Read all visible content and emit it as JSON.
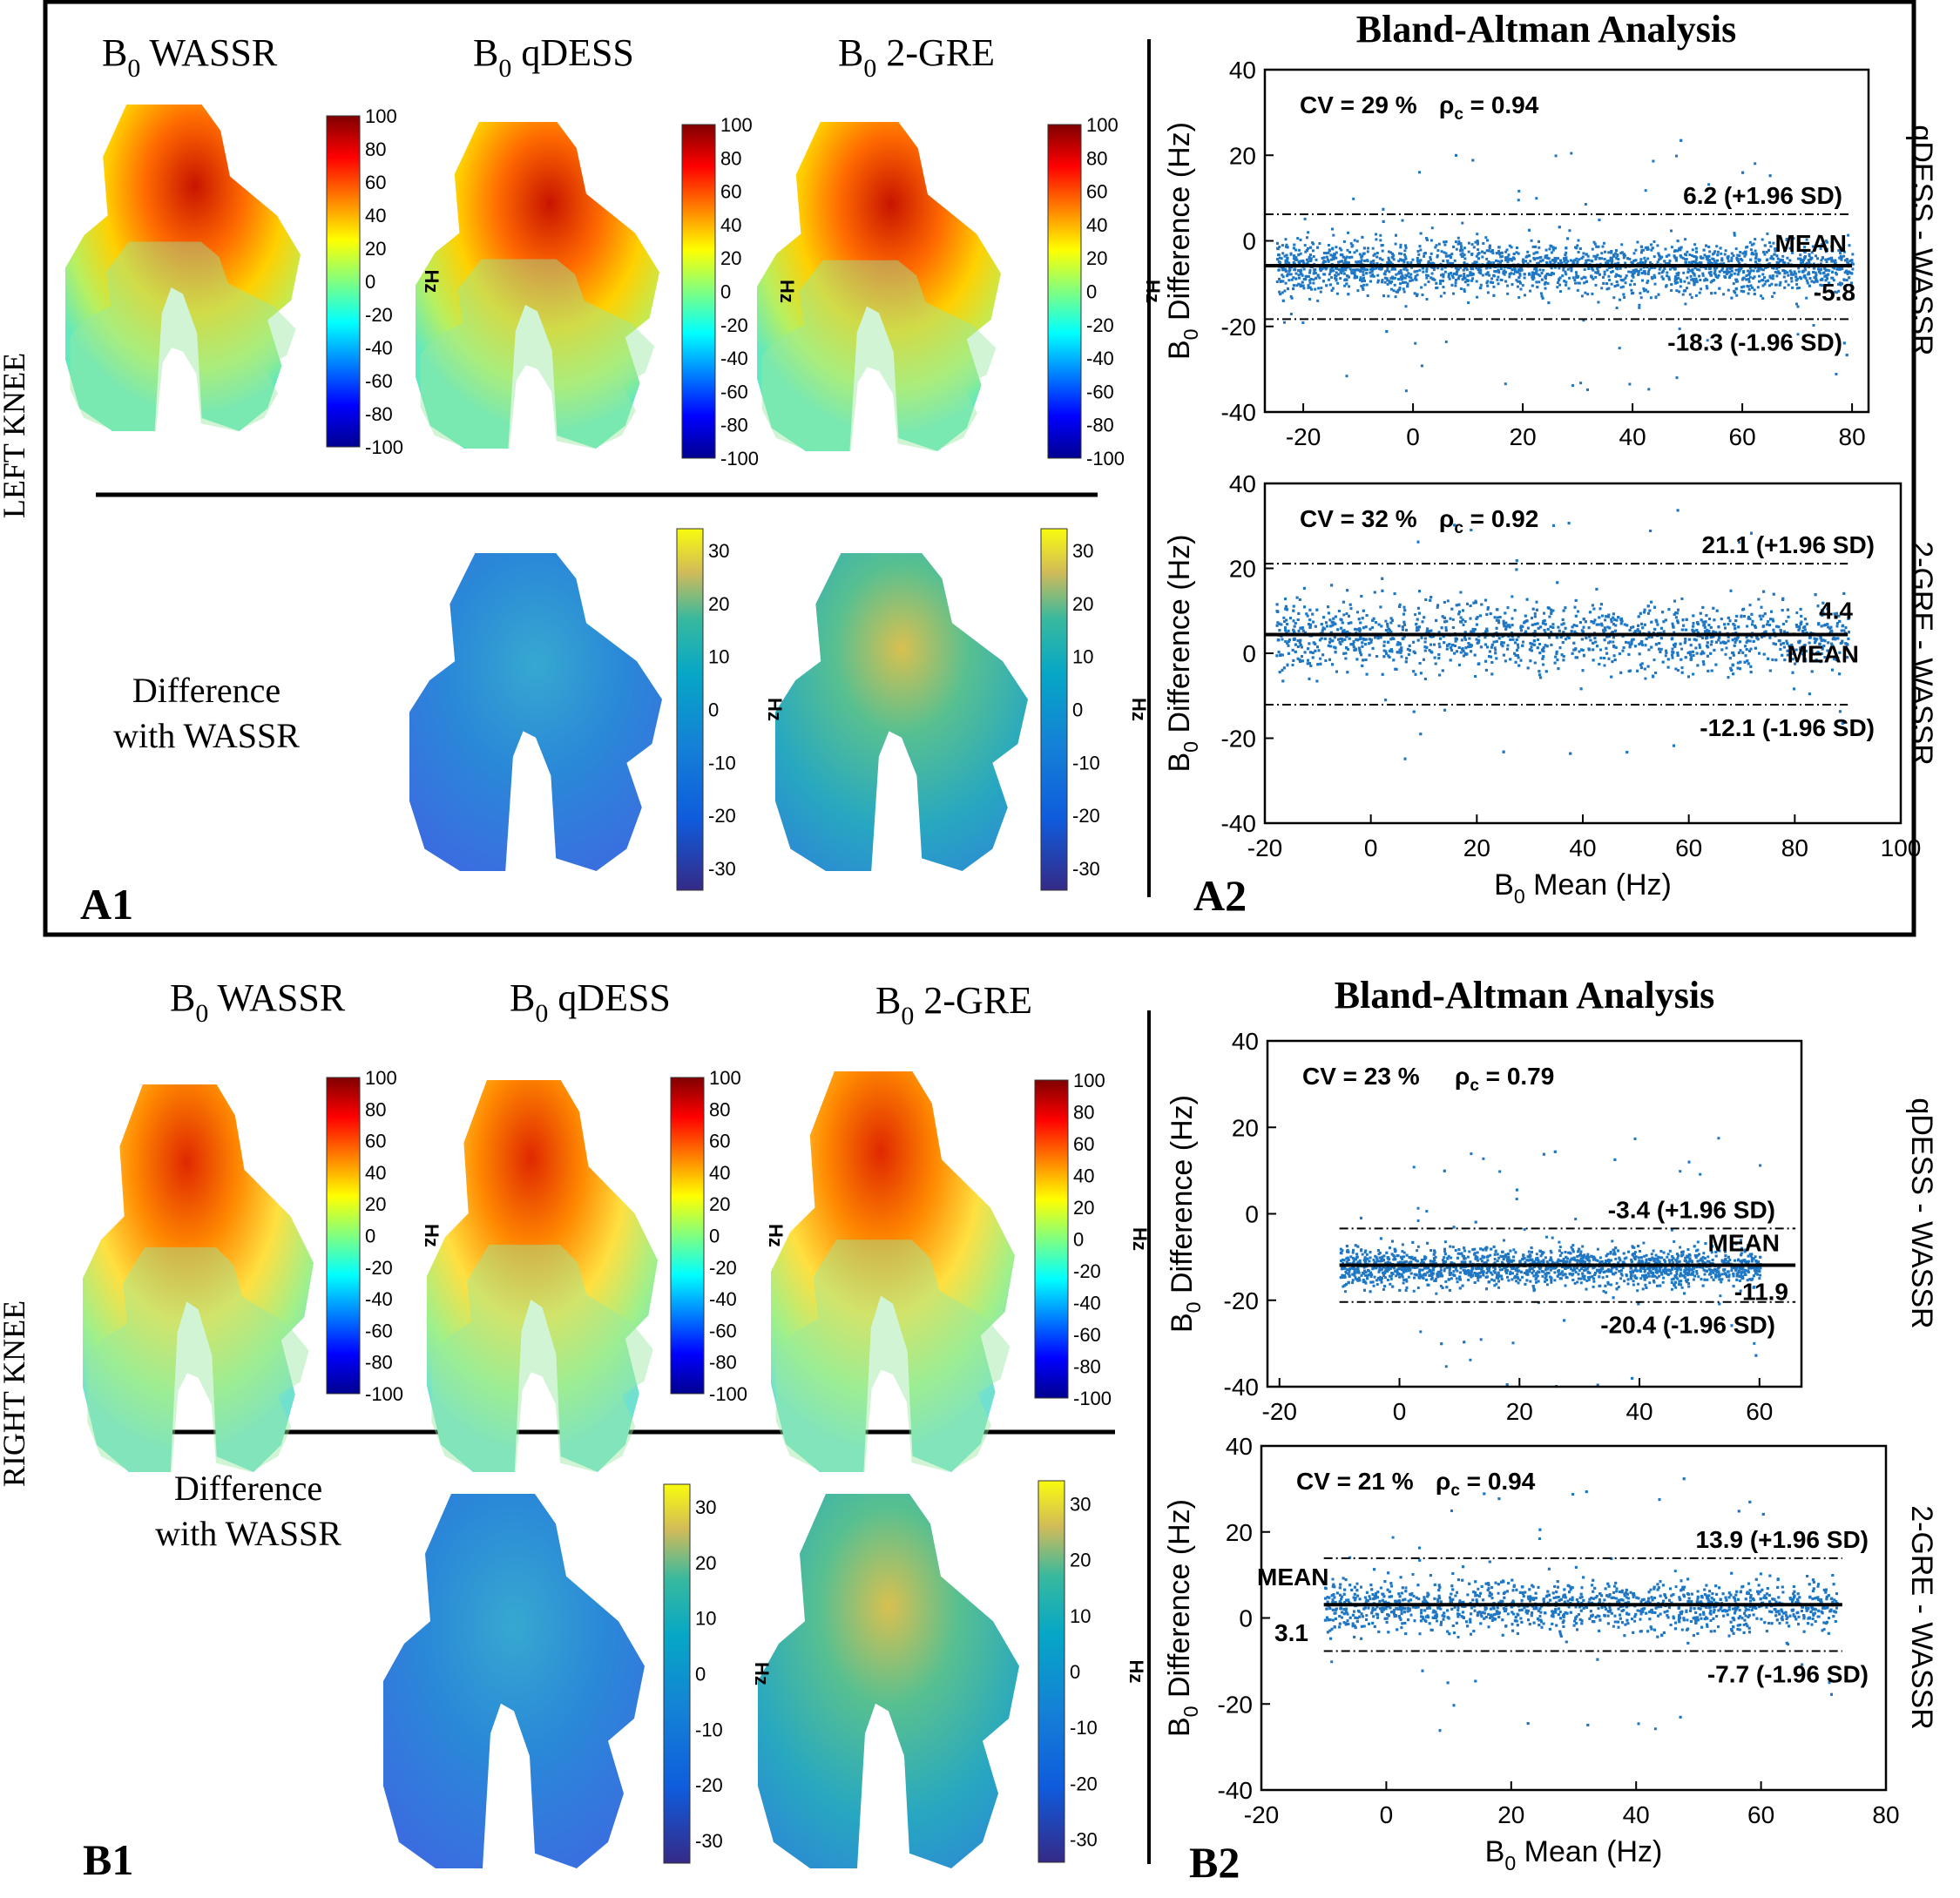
{
  "figure": {
    "panels": [
      {
        "knee_label": "LEFT KNEE",
        "map_titles": [
          {
            "pre": "B",
            "sub": "0",
            "post": " WASSR"
          },
          {
            "pre": "B",
            "sub": "0",
            "post": " qDESS"
          },
          {
            "pre": "B",
            "sub": "0",
            "post": " 2-GRE"
          }
        ],
        "diff_label": [
          "Difference",
          "with WASSR"
        ],
        "map_colorbar_ticks": [
          "100",
          "80",
          "60",
          "40",
          "20",
          "0",
          "-20",
          "-40",
          "-60",
          "-80",
          "-100"
        ],
        "diff_colorbar_ticks": [
          "30",
          "20",
          "10",
          "0",
          "-10",
          "-20",
          "-30"
        ],
        "colorbar_unit": "Hz",
        "map_corner": "A1",
        "ba_corner": "A2",
        "ba_title": "Bland-Altman Analysis"
      },
      {
        "knee_label": "RIGHT KNEE",
        "map_titles": [
          {
            "pre": "B",
            "sub": "0",
            "post": " WASSR"
          },
          {
            "pre": "B",
            "sub": "0",
            "post": " qDESS"
          },
          {
            "pre": "B",
            "sub": "0",
            "post": " 2-GRE"
          }
        ],
        "diff_label": [
          "Difference",
          "with WASSR"
        ],
        "map_colorbar_ticks": [
          "100",
          "80",
          "60",
          "40",
          "20",
          "0",
          "-20",
          "-40",
          "-60",
          "-80",
          "-100"
        ],
        "diff_colorbar_ticks": [
          "30",
          "20",
          "10",
          "0",
          "-10",
          "-20",
          "-30"
        ],
        "colorbar_unit": "Hz",
        "map_corner": "B1",
        "ba_corner": "B2",
        "ba_title": "Bland-Altman Analysis"
      }
    ],
    "y_axis_label": {
      "pre": "B",
      "sub": "0",
      "post": " Difference (Hz)"
    },
    "x_axis_label": {
      "pre": "B",
      "sub": "0",
      "post": " Mean (Hz)"
    },
    "mean_word": "MEAN"
  },
  "chart_data": [
    {
      "type": "scatter",
      "title": "Bland-Altman Analysis",
      "side_label": "qDESS - WASSR",
      "cv_text": "CV = 29 %",
      "rho_text": "ρc = 0.94",
      "xlim": [
        -27,
        83
      ],
      "ylim": [
        -40,
        40
      ],
      "xticks": [
        -20,
        0,
        20,
        40,
        60,
        80
      ],
      "yticks": [
        -40,
        -20,
        0,
        20,
        40
      ],
      "mean": -5.8,
      "upper": 6.2,
      "lower": -18.3,
      "upper_label": "6.2 (+1.96 SD)",
      "lower_label": "-18.3 (-1.96 SD)",
      "mean_value_label": "-5.8",
      "line_x": [
        -27,
        80
      ],
      "x_range": [
        -25,
        80
      ],
      "spread": 5.2,
      "npoints": 2600
    },
    {
      "type": "scatter",
      "side_label": "2-GRE - WASSR",
      "cv_text": "CV = 32 %",
      "rho_text": "ρc = 0.92",
      "xlim": [
        -20,
        100
      ],
      "ylim": [
        -40,
        40
      ],
      "xticks": [
        -20,
        0,
        20,
        40,
        60,
        80,
        100
      ],
      "yticks": [
        -40,
        -20,
        0,
        20,
        40
      ],
      "xlabel": "B0 Mean (Hz)",
      "ylabel": "B0 Difference (Hz)",
      "mean": 4.4,
      "upper": 21.1,
      "lower": -12.1,
      "upper_label": "21.1 (+1.96 SD)",
      "lower_label": "-12.1 (-1.96 SD)",
      "mean_value_label": "4.4",
      "line_x": [
        -20,
        90
      ],
      "x_range": [
        -18,
        90
      ],
      "spread": 7.0,
      "npoints": 2800
    },
    {
      "type": "scatter",
      "title": "Bland-Altman Analysis",
      "side_label": "qDESS - WASSR",
      "cv_text": "CV = 23 %",
      "rho_text": "ρc = 0.79",
      "xlim": [
        -22,
        67
      ],
      "ylim": [
        -40,
        40
      ],
      "xticks": [
        -20,
        0,
        20,
        40,
        60
      ],
      "yticks": [
        -40,
        -20,
        0,
        20,
        40
      ],
      "mean": -11.9,
      "upper": -3.4,
      "lower": -20.4,
      "upper_label": "-3.4 (+1.96 SD)",
      "lower_label": "-20.4 (-1.96 SD)",
      "mean_value_label": "-11.9",
      "line_x": [
        -10,
        66
      ],
      "x_range": [
        -10,
        60
      ],
      "spread": 3.8,
      "npoints": 2400
    },
    {
      "type": "scatter",
      "side_label": "2-GRE - WASSR",
      "cv_text": "CV = 21 %",
      "rho_text": "ρc = 0.94",
      "xlim": [
        -20,
        80
      ],
      "ylim": [
        -40,
        40
      ],
      "xticks": [
        -20,
        0,
        20,
        40,
        60,
        80
      ],
      "yticks": [
        -40,
        -20,
        0,
        20,
        40
      ],
      "xlabel": "B0 Mean (Hz)",
      "ylabel": "B0 Difference (Hz)",
      "mean": 3.1,
      "upper": 13.9,
      "lower": -7.7,
      "upper_label": "13.9 (+1.96 SD)",
      "lower_label": "-7.7 (-1.96 SD)",
      "mean_value_label": "3.1",
      "line_x": [
        -10,
        73
      ],
      "x_range": [
        -10,
        72
      ],
      "spread": 5.0,
      "npoints": 2600
    }
  ]
}
